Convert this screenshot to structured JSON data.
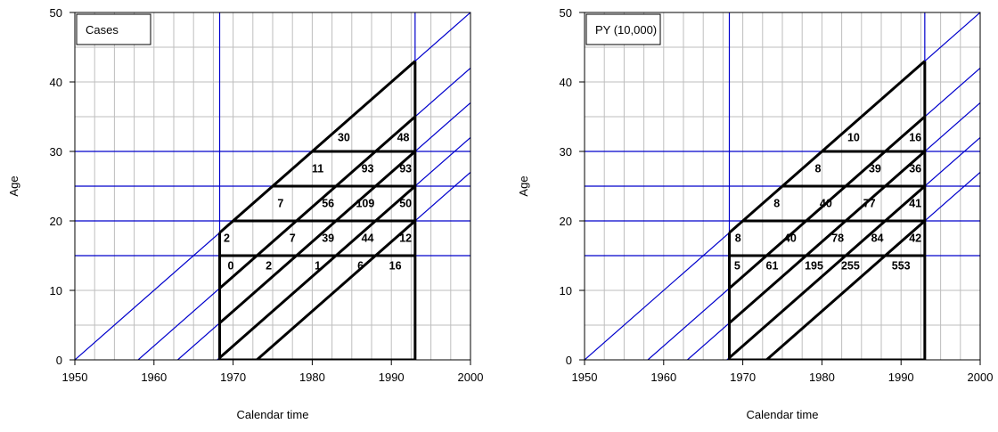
{
  "chart_data": [
    {
      "type": "lexis",
      "legend": "Cases",
      "xlabel": "Calendar time",
      "ylabel": "Age",
      "xlim": [
        1950,
        2000
      ],
      "ylim": [
        0,
        50
      ],
      "xticks": [
        1950,
        1960,
        1970,
        1980,
        1990,
        2000
      ],
      "yticks": [
        0,
        10,
        20,
        30,
        40,
        50
      ],
      "grid": true,
      "colors": {
        "grid": "#bebebe",
        "blue": "#0000cc",
        "black": "#000000"
      },
      "blue_vlines": [
        1968.3,
        1993
      ],
      "blue_hlines": [
        15,
        20,
        25,
        30
      ],
      "blue_diagonals_birth_year": [
        1950,
        1958,
        1963,
        1968,
        1973
      ],
      "region": {
        "x0": 1968.3,
        "x1": 1993
      },
      "black_hlines": [
        15,
        20,
        25,
        30
      ],
      "black_diagonals_birth_year": [
        1950,
        1958,
        1963,
        1968,
        1973
      ],
      "labels": [
        {
          "x": 1969.7,
          "y": 13.5,
          "text": "0"
        },
        {
          "x": 1974.5,
          "y": 13.5,
          "text": "2"
        },
        {
          "x": 1980.7,
          "y": 13.5,
          "text": "1"
        },
        {
          "x": 1986.1,
          "y": 13.5,
          "text": "6"
        },
        {
          "x": 1990.5,
          "y": 13.5,
          "text": "16"
        },
        {
          "x": 1969.2,
          "y": 17.5,
          "text": "2"
        },
        {
          "x": 1977.5,
          "y": 17.5,
          "text": "7"
        },
        {
          "x": 1982.0,
          "y": 17.5,
          "text": "39"
        },
        {
          "x": 1987.0,
          "y": 17.5,
          "text": "44"
        },
        {
          "x": 1991.8,
          "y": 17.5,
          "text": "12"
        },
        {
          "x": 1976.0,
          "y": 22.5,
          "text": "7"
        },
        {
          "x": 1982.0,
          "y": 22.5,
          "text": "56"
        },
        {
          "x": 1986.7,
          "y": 22.5,
          "text": "109"
        },
        {
          "x": 1991.8,
          "y": 22.5,
          "text": "50"
        },
        {
          "x": 1980.7,
          "y": 27.5,
          "text": "11"
        },
        {
          "x": 1987.0,
          "y": 27.5,
          "text": "93"
        },
        {
          "x": 1991.8,
          "y": 27.5,
          "text": "93"
        },
        {
          "x": 1984.0,
          "y": 32.0,
          "text": "30"
        },
        {
          "x": 1991.5,
          "y": 32.0,
          "text": "48"
        }
      ]
    },
    {
      "type": "lexis",
      "legend": "PY (10,000)",
      "xlabel": "Calendar time",
      "ylabel": "Age",
      "xlim": [
        1950,
        2000
      ],
      "ylim": [
        0,
        50
      ],
      "xticks": [
        1950,
        1960,
        1970,
        1980,
        1990,
        2000
      ],
      "yticks": [
        0,
        10,
        20,
        30,
        40,
        50
      ],
      "grid": true,
      "colors": {
        "grid": "#bebebe",
        "blue": "#0000cc",
        "black": "#000000"
      },
      "blue_vlines": [
        1968.3,
        1993
      ],
      "blue_hlines": [
        15,
        20,
        25,
        30
      ],
      "blue_diagonals_birth_year": [
        1950,
        1958,
        1963,
        1968,
        1973
      ],
      "region": {
        "x0": 1968.3,
        "x1": 1993
      },
      "black_hlines": [
        15,
        20,
        25,
        30
      ],
      "black_diagonals_birth_year": [
        1950,
        1958,
        1963,
        1968,
        1973
      ],
      "labels": [
        {
          "x": 1969.3,
          "y": 13.5,
          "text": "5"
        },
        {
          "x": 1973.7,
          "y": 13.5,
          "text": "61"
        },
        {
          "x": 1979.0,
          "y": 13.5,
          "text": "195"
        },
        {
          "x": 1983.6,
          "y": 13.5,
          "text": "255"
        },
        {
          "x": 1990.0,
          "y": 13.5,
          "text": "553"
        },
        {
          "x": 1969.4,
          "y": 17.5,
          "text": "8"
        },
        {
          "x": 1976.0,
          "y": 17.5,
          "text": "40"
        },
        {
          "x": 1982.0,
          "y": 17.5,
          "text": "78"
        },
        {
          "x": 1987.0,
          "y": 17.5,
          "text": "84"
        },
        {
          "x": 1991.8,
          "y": 17.5,
          "text": "42"
        },
        {
          "x": 1974.3,
          "y": 22.5,
          "text": "8"
        },
        {
          "x": 1980.5,
          "y": 22.5,
          "text": "40"
        },
        {
          "x": 1986.0,
          "y": 22.5,
          "text": "77"
        },
        {
          "x": 1991.8,
          "y": 22.5,
          "text": "41"
        },
        {
          "x": 1979.5,
          "y": 27.5,
          "text": "8"
        },
        {
          "x": 1986.7,
          "y": 27.5,
          "text": "39"
        },
        {
          "x": 1991.8,
          "y": 27.5,
          "text": "36"
        },
        {
          "x": 1984.0,
          "y": 32.0,
          "text": "10"
        },
        {
          "x": 1991.8,
          "y": 32.0,
          "text": "16"
        }
      ]
    }
  ]
}
